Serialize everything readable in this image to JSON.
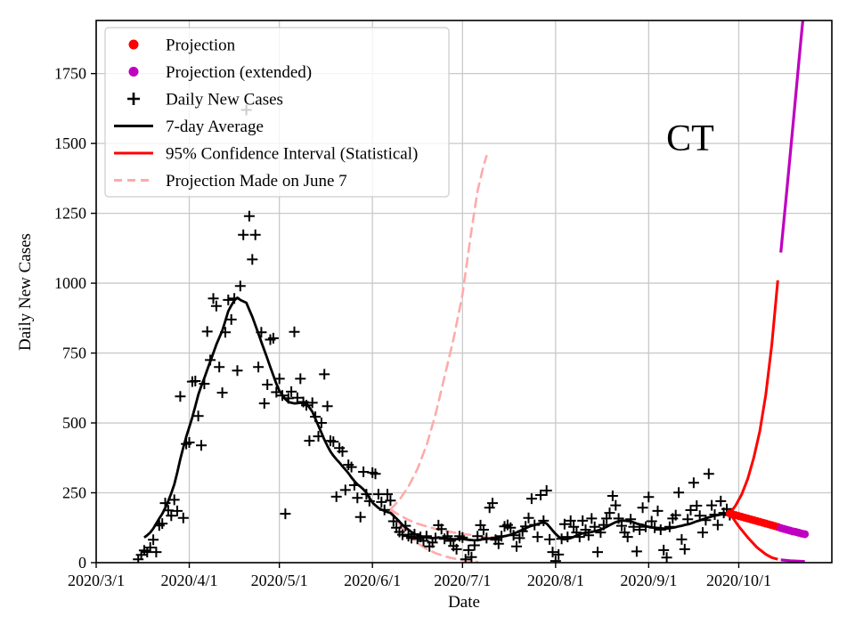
{
  "chart_data": {
    "type": "line+scatter",
    "annotation": "CT",
    "xlabel": "Date",
    "ylabel": "Daily New Cases",
    "x_tick_labels": [
      "2020/3/1",
      "2020/4/1",
      "2020/5/1",
      "2020/6/1",
      "2020/7/1",
      "2020/8/1",
      "2020/9/1",
      "2020/10/1"
    ],
    "y_tick_labels": [
      "0",
      "250",
      "500",
      "750",
      "1000",
      "1250",
      "1500",
      "1750"
    ],
    "y_tick_values": [
      0,
      250,
      500,
      750,
      1000,
      1250,
      1500,
      1750
    ],
    "x_range": [
      "2020/3/1",
      "2020/11/1"
    ],
    "y_range": [
      0,
      1940
    ],
    "grid": true,
    "legend": {
      "position": "upper left",
      "items": [
        {
          "label": "Projection",
          "marker": "dot",
          "color": "#ff0000"
        },
        {
          "label": "Projection (extended)",
          "marker": "dot",
          "color": "#bf00bf"
        },
        {
          "label": "Daily New Cases",
          "marker": "plus",
          "color": "#000000"
        },
        {
          "label": "7-day Average",
          "marker": "line",
          "color": "#000000"
        },
        {
          "label": "95% Confidence Interval (Statistical)",
          "marker": "line",
          "color": "#ff0000"
        },
        {
          "label": "Projection Made on June 7",
          "marker": "dashed-line",
          "color": "#ffaaaa"
        }
      ]
    },
    "colors": {
      "projection": "#ff0000",
      "projection_extended": "#bf00bf",
      "daily_cases": "#000000",
      "average": "#000000",
      "confidence_interval": "#ff0000",
      "june7_projection": "#ffaaaa",
      "grid": "#c9c9c9",
      "spine": "#000000"
    },
    "daily_new_cases": {
      "start_date": "2020/3/15",
      "values": [
        12,
        28,
        44,
        38,
        54,
        82,
        38,
        133,
        140,
        213,
        187,
        168,
        225,
        185,
        595,
        160,
        425,
        430,
        648,
        650,
        525,
        420,
        640,
        827,
        725,
        945,
        918,
        700,
        608,
        824,
        940,
        870,
        945,
        687,
        990,
        1173,
        1620,
        1240,
        1085,
        1173,
        700,
        824,
        570,
        637,
        798,
        803,
        610,
        658,
        598,
        175,
        588,
        612,
        826,
        590,
        658,
        575,
        563,
        436,
        572,
        522,
        452,
        500,
        674,
        560,
        436,
        433,
        236,
        410,
        398,
        260,
        350,
        342,
        277,
        232,
        163,
        325,
        245,
        220,
        322,
        318,
        245,
        217,
        189,
        245,
        222,
        148,
        125,
        110,
        100,
        132,
        95,
        88,
        102,
        85,
        92,
        78,
        95,
        58,
        72,
        88,
        134,
        120,
        85,
        95,
        78,
        60,
        48,
        95,
        90,
        12,
        45,
        20,
        62,
        95,
        134,
        118,
        88,
        197,
        213,
        82,
        68,
        95,
        130,
        135,
        125,
        98,
        58,
        88,
        112,
        130,
        160,
        229,
        135,
        92,
        242,
        150,
        258,
        83,
        38,
        6,
        29,
        85,
        138,
        92,
        150,
        128,
        108,
        92,
        150,
        118,
        98,
        158,
        128,
        38,
        108,
        135,
        158,
        178,
        239,
        205,
        158,
        132,
        108,
        92,
        155,
        128,
        40,
        118,
        197,
        128,
        235,
        148,
        125,
        185,
        118,
        45,
        18,
        128,
        158,
        170,
        251,
        83,
        48,
        155,
        188,
        286,
        204,
        168,
        108,
        152,
        318,
        205,
        172,
        135,
        220,
        178,
        192,
        170
      ]
    },
    "seven_day_average": {
      "start_date": "2020/3/17",
      "values": [
        90,
        98,
        108,
        122,
        140,
        158,
        175,
        196,
        220,
        248,
        280,
        322,
        370,
        412,
        450,
        485,
        520,
        560,
        600,
        632,
        660,
        690,
        720,
        750,
        780,
        805,
        830,
        865,
        900,
        920,
        938,
        948,
        940,
        935,
        930,
        905,
        880,
        850,
        820,
        790,
        760,
        730,
        700,
        670,
        640,
        615,
        600,
        585,
        575,
        572,
        570,
        571,
        572,
        571,
        570,
        555,
        540,
        515,
        490,
        465,
        440,
        418,
        398,
        383,
        370,
        358,
        345,
        333,
        320,
        305,
        292,
        280,
        272,
        262,
        250,
        232,
        215,
        205,
        196,
        190,
        185,
        181,
        178,
        168,
        158,
        147,
        135,
        126,
        118,
        110,
        103,
        99,
        95,
        92,
        90,
        89,
        88,
        89,
        90,
        89,
        88,
        87,
        85,
        84,
        84,
        85,
        85,
        83,
        82,
        81,
        80,
        81,
        82,
        84,
        85,
        86,
        88,
        89,
        90,
        92,
        95,
        97,
        100,
        104,
        108,
        113,
        118,
        123,
        128,
        132,
        135,
        138,
        142,
        145,
        140,
        128,
        115,
        103,
        93,
        86,
        83,
        85,
        88,
        92,
        97,
        101,
        105,
        107,
        108,
        110,
        112,
        115,
        118,
        123,
        128,
        134,
        140,
        145,
        148,
        150,
        150,
        149,
        148,
        144,
        140,
        137,
        135,
        131,
        128,
        126,
        125,
        124,
        123,
        122,
        122,
        123,
        125,
        127,
        130,
        132,
        135,
        137,
        140,
        144,
        148,
        151,
        155,
        158,
        162,
        165,
        168,
        170,
        172,
        174,
        175,
        176
      ]
    },
    "projection": {
      "start_date": "2020/9/28",
      "values": [
        176,
        173,
        170,
        167,
        164,
        161,
        158,
        155,
        152,
        149,
        146,
        143,
        140,
        137,
        134,
        131,
        128
      ]
    },
    "projection_extended": {
      "start_date": "2020/10/15",
      "values": [
        124,
        121,
        118,
        115,
        112,
        110,
        107,
        104,
        102
      ]
    },
    "ci_upper": [
      [
        "2020/9/28",
        176
      ],
      [
        "2020/9/30",
        205
      ],
      [
        "2020/10/2",
        245
      ],
      [
        "2020/10/4",
        300
      ],
      [
        "2020/10/6",
        375
      ],
      [
        "2020/10/8",
        470
      ],
      [
        "2020/10/10",
        600
      ],
      [
        "2020/10/12",
        780
      ],
      [
        "2020/10/14",
        1010
      ]
    ],
    "ci_lower": [
      [
        "2020/9/28",
        176
      ],
      [
        "2020/10/1",
        130
      ],
      [
        "2020/10/4",
        90
      ],
      [
        "2020/10/7",
        55
      ],
      [
        "2020/10/10",
        30
      ],
      [
        "2020/10/12",
        18
      ],
      [
        "2020/10/14",
        12
      ]
    ],
    "ci_upper_extended": [
      [
        "2020/10/15",
        1110
      ],
      [
        "2020/10/17",
        1330
      ],
      [
        "2020/10/19",
        1560
      ],
      [
        "2020/10/21",
        1790
      ],
      [
        "2020/10/22",
        1905
      ],
      [
        "2020/10/23",
        2010
      ]
    ],
    "ci_lower_extended": [
      [
        "2020/10/15",
        10
      ],
      [
        "2020/10/18",
        7
      ],
      [
        "2020/10/21",
        5
      ],
      [
        "2020/10/23",
        4
      ]
    ],
    "june7_projection_upper": [
      [
        "2020/6/7",
        190
      ],
      [
        "2020/6/10",
        225
      ],
      [
        "2020/6/13",
        272
      ],
      [
        "2020/6/16",
        335
      ],
      [
        "2020/6/19",
        420
      ],
      [
        "2020/6/22",
        530
      ],
      [
        "2020/6/25",
        665
      ],
      [
        "2020/6/28",
        800
      ],
      [
        "2020/7/1",
        960
      ],
      [
        "2020/7/4",
        1190
      ],
      [
        "2020/7/6",
        1330
      ],
      [
        "2020/7/8",
        1420
      ],
      [
        "2020/7/9",
        1455
      ]
    ],
    "june7_projection_mid": [
      [
        "2020/6/7",
        190
      ],
      [
        "2020/6/10",
        170
      ],
      [
        "2020/6/13",
        153
      ],
      [
        "2020/6/16",
        140
      ],
      [
        "2020/6/19",
        130
      ],
      [
        "2020/6/22",
        121
      ],
      [
        "2020/6/25",
        114
      ],
      [
        "2020/6/28",
        108
      ],
      [
        "2020/7/1",
        103
      ],
      [
        "2020/7/4",
        99
      ],
      [
        "2020/7/7",
        95
      ],
      [
        "2020/7/10",
        92
      ],
      [
        "2020/7/12",
        90
      ]
    ],
    "june7_projection_lower": [
      [
        "2020/6/7",
        190
      ],
      [
        "2020/6/10",
        138
      ],
      [
        "2020/6/13",
        99
      ],
      [
        "2020/6/16",
        70
      ],
      [
        "2020/6/19",
        49
      ],
      [
        "2020/6/22",
        34
      ],
      [
        "2020/6/25",
        23
      ],
      [
        "2020/6/28",
        15
      ],
      [
        "2020/7/1",
        9
      ],
      [
        "2020/7/4",
        5
      ],
      [
        "2020/7/6",
        3
      ]
    ]
  }
}
